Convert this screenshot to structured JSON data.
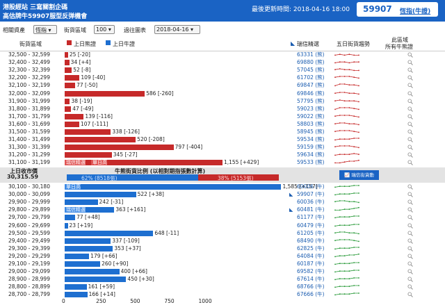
{
  "header": {
    "title_line1": "港股經站 三寫關割企碼",
    "title_line2": "高估牌牛59907服型反弹機會",
    "update_label": "最後更新時間: 2018-04-16 18:00",
    "code": "59907",
    "code_sub": "恆指(牛證)"
  },
  "controls": {
    "asset_label": "相關資產",
    "asset_value": "恆指 ▾",
    "range_label": "街貨區域",
    "range_value": "100 ▾",
    "chart_label": "過往圖表",
    "chart_value": "2018-04-16 ▾"
  },
  "columns": {
    "range": "街貨區域",
    "bear": "上日熊證",
    "bull": "上日牛證",
    "warrant": "瑞信精選",
    "trend": "五日街貨趨勢",
    "zone1": "此區域",
    "zone2": "所有牛熊證"
  },
  "colors": {
    "bear": "#c62a2a",
    "bull": "#1e6fd0",
    "header": "#1a63c4"
  },
  "icons": {
    "flag": "arrow-flag-icon",
    "zone": "magnifier-icon"
  },
  "bear_rows": [
    {
      "range": "32,500 - 32,599",
      "value": 25,
      "label": "25 [-20]",
      "warrant": "63331 (熊)",
      "trend": [
        3,
        4,
        3,
        4,
        3,
        3
      ]
    },
    {
      "range": "32,400 - 32,499",
      "value": 34,
      "label": "34 [+4]",
      "warrant": "69880 (熊)",
      "trend": [
        3,
        4,
        4,
        3,
        4,
        4
      ]
    },
    {
      "range": "32,300 - 32,399",
      "value": 52,
      "label": "52 [-8]",
      "warrant": "57045 (熊)",
      "trend": [
        4,
        5,
        4,
        4,
        3,
        3
      ]
    },
    {
      "range": "32,200 - 32,299",
      "value": 109,
      "label": "109 [-40]",
      "warrant": "61702 (熊)",
      "trend": [
        4,
        5,
        5,
        5,
        4,
        3
      ]
    },
    {
      "range": "32,100 - 32,199",
      "value": 77,
      "label": "77 [-50]",
      "warrant": "69847 (熊)",
      "trend": [
        3,
        5,
        5,
        4,
        4,
        3
      ]
    },
    {
      "range": "32,000 - 32,099",
      "value": 586,
      "label": "586 [-260]",
      "warrant": "69846 (熊)",
      "trend": [
        4,
        5,
        5,
        4,
        4,
        3
      ]
    },
    {
      "range": "31,900 - 31,999",
      "value": 38,
      "label": "38 [-19]",
      "warrant": "57795 (熊)",
      "trend": [
        4,
        5,
        4,
        4,
        4,
        3
      ]
    },
    {
      "range": "31,800 - 31,899",
      "value": 47,
      "label": "47 [-49]",
      "warrant": "59023 (熊)",
      "trend": [
        3,
        5,
        5,
        5,
        4,
        3
      ]
    },
    {
      "range": "31,700 - 31,799",
      "value": 139,
      "label": "139 [-116]",
      "warrant": "59022 (熊)",
      "trend": [
        4,
        5,
        5,
        5,
        4,
        3
      ]
    },
    {
      "range": "31,600 - 31,699",
      "value": 107,
      "label": "107 [-111]",
      "warrant": "58803 (熊)",
      "trend": [
        4,
        5,
        5,
        4,
        4,
        3
      ]
    },
    {
      "range": "31,500 - 31,599",
      "value": 338,
      "label": "338 [-126]",
      "warrant": "58945 (熊)",
      "trend": [
        4,
        5,
        5,
        5,
        4,
        3
      ]
    },
    {
      "range": "31,400 - 31,499",
      "value": 520,
      "label": "520 [-208]",
      "warrant": "59534 (熊)",
      "trend": [
        3,
        4,
        4,
        4,
        5,
        5
      ]
    },
    {
      "range": "31,300 - 31,399",
      "value": 797,
      "label": "797 [-404]",
      "warrant": "59159 (熊)",
      "trend": [
        4,
        5,
        5,
        5,
        4,
        3
      ]
    },
    {
      "range": "31,200 - 31,299",
      "value": 345,
      "label": "345 [-27]",
      "warrant": "59634 (熊)",
      "trend": [
        3,
        4,
        4,
        4,
        5,
        4
      ]
    },
    {
      "range": "31,100 - 31,199",
      "value": 1155,
      "label": "1,155 [+429]",
      "warrant": "59533 (熊)",
      "trend": [
        3,
        3,
        4,
        5,
        5,
        6
      ],
      "highlight": "瑞信精選|單日高"
    }
  ],
  "mid": {
    "close_label": "上日收市價",
    "close_value": "30,315.59",
    "ratio_title": "牛熊街貨比例 (以相對期指張數計算)",
    "bull_text": "62% (8518張)",
    "bear_text": "38% (5153張)",
    "bull_pct": 62,
    "button": "瑞信街貨動"
  },
  "bull_rows": [
    {
      "range": "30,100 - 30,180",
      "value": 1585,
      "label": "1,585 [+157]",
      "warrant": "60006 (牛)",
      "trend": [
        3,
        4,
        4,
        4,
        5,
        5
      ],
      "highlight": "單日高"
    },
    {
      "range": "30,000 - 30,099",
      "value": 522,
      "label": "522 [+38]",
      "warrant": "59907 (牛)",
      "trend": [
        3,
        4,
        4,
        4,
        5,
        5
      ],
      "flag": true
    },
    {
      "range": "29,900 - 29,999",
      "value": 242,
      "label": "242 [-31]",
      "warrant": "60036 (牛)",
      "trend": [
        4,
        5,
        5,
        4,
        4,
        3
      ]
    },
    {
      "range": "29,800 - 29,899",
      "value": 363,
      "label": "363 [+161]",
      "warrant": "60481 (牛)",
      "trend": [
        3,
        3,
        4,
        4,
        5,
        6
      ],
      "flag": true,
      "highlight": "瑞信精選"
    },
    {
      "range": "29,700 - 29,799",
      "value": 77,
      "label": "77 [+48]",
      "warrant": "61177 (牛)",
      "trend": [
        3,
        4,
        4,
        4,
        5,
        5
      ]
    },
    {
      "range": "29,600 - 29,699",
      "value": 23,
      "label": "23 [+19]",
      "warrant": "60479 (牛)",
      "trend": [
        3,
        4,
        4,
        4,
        5,
        5
      ]
    },
    {
      "range": "29,500 - 29,599",
      "value": 648,
      "label": "648 [-11]",
      "warrant": "61205 (牛)",
      "trend": [
        4,
        5,
        5,
        4,
        4,
        3
      ]
    },
    {
      "range": "29,400 - 29,499",
      "value": 337,
      "label": "337 [-109]",
      "warrant": "68490 (牛)",
      "trend": [
        4,
        5,
        5,
        5,
        4,
        3
      ]
    },
    {
      "range": "29,300 - 29,399",
      "value": 353,
      "label": "353 [+37]",
      "warrant": "62825 (牛)",
      "trend": [
        3,
        4,
        4,
        4,
        5,
        5
      ]
    },
    {
      "range": "29,200 - 29,299",
      "value": 179,
      "label": "179 [+66]",
      "warrant": "64084 (牛)",
      "trend": [
        3,
        4,
        4,
        5,
        5,
        6
      ]
    },
    {
      "range": "29,100 - 29,199",
      "value": 260,
      "label": "260 [+90]",
      "warrant": "60187 (牛)",
      "trend": [
        3,
        4,
        4,
        4,
        5,
        5
      ]
    },
    {
      "range": "29,000 - 29,099",
      "value": 400,
      "label": "400 [+66]",
      "warrant": "69582 (牛)",
      "trend": [
        3,
        4,
        4,
        4,
        5,
        5
      ]
    },
    {
      "range": "28,900 - 28,999",
      "value": 450,
      "label": "450 [+30]",
      "warrant": "67614 (牛)",
      "trend": [
        3,
        4,
        4,
        4,
        5,
        5
      ]
    },
    {
      "range": "28,800 - 28,899",
      "value": 161,
      "label": "161 [+59]",
      "warrant": "68766 (牛)",
      "trend": [
        3,
        4,
        4,
        4,
        5,
        5
      ]
    },
    {
      "range": "28,700 - 28,799",
      "value": 166,
      "label": "166 [+14]",
      "warrant": "67666 (牛)",
      "trend": [
        3,
        4,
        4,
        4,
        5,
        5
      ]
    }
  ],
  "axis": {
    "ticks": [
      "0",
      "250",
      "500",
      "750",
      "1000"
    ]
  }
}
